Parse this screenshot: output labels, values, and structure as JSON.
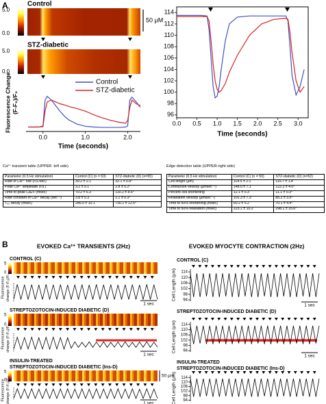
{
  "panel_a": {
    "label": "A",
    "images": [
      {
        "title": "Control",
        "scale_max": "5.0",
        "scale_min": "0.0"
      },
      {
        "title": "STZ-diabetic",
        "scale_max": "5.0",
        "scale_min": "0.0"
      }
    ],
    "scale_bar": "50 μM",
    "calcium_table": {
      "caption": "Ca²⁺ transient table (UPPER -left side)",
      "header": [
        "Parameter (0.5 Hz stimulation)",
        "Control (C)   (n = 53)",
        "STZ-diabetic (D)   (n=55)"
      ],
      "rows": [
        [
          "Rate of Ca²⁺ rise (f.u./sec)",
          "39.2 ± 2.1",
          "32.1 ± 0.8*"
        ],
        [
          "Peak Ca²⁺ amplitude (f.u.)",
          "3.2 ± 0.1",
          "2.8 ± 0.2*"
        ],
        [
          "Time to peak Ca2+ (msec)",
          "70.2 ± 6.3",
          "110.2 ± 8.6*"
        ],
        [
          "Rate constant of Ca²⁺ decay (sec⁻¹)",
          "3.8 ± 0.3",
          "2.1 ± 0.3*"
        ],
        [
          "T₅₀ decay (msec)",
          "286.5 ± 10.1",
          "730.1 ± 12.5*"
        ]
      ]
    },
    "edge_table": {
      "caption": "Edge detection table (UPPER-right side)",
      "header": [
        "Parameter (0.5 Hz stimulation)",
        "Control (C)   (n = 50)",
        "STZ-diabetic (D) (n=52)"
      ],
      "rows": [
        [
          "Cell length (µm)",
          "114.5 ± 2.1",
          "115.7 ± 1.8"
        ],
        [
          "Contraction velocity (µmsec⁻¹)",
          "148.0 ± 7.1",
          "122.2 ± 4.0*"
        ],
        [
          "Percent cell shortening",
          "12.1 ± 0.3",
          "11.1 ± 0.3*"
        ],
        [
          "Relaxation velocity (µmsec⁻¹)",
          "101.3 ± 7.3",
          "85.2 ± 3.5*"
        ],
        [
          "Time to 50% shortening (msec)",
          "60.2 ± 5.2",
          "70.1 ± 4.4*"
        ],
        [
          "Time to 50% relaxation (msec)",
          "223.1 ± 10.2",
          "298.1 ± 15.6*"
        ]
      ]
    }
  },
  "panel_b": {
    "label": "B",
    "left_title": "EVOKED Ca²⁺ TRANSIENTS (2Hz)",
    "right_title": "EVOKED MYOCYTE CONTRACTION (2Hz)",
    "groups": [
      {
        "title": [
          "CONTROL (C)"
        ],
        "scale_max": "5",
        "scale_min": "0"
      },
      {
        "title": [
          "STREPTOZOTOCIN-INDUCED DIABETIC (D)"
        ],
        "scale_max": "5",
        "scale_min": "0"
      },
      {
        "title": [
          "INSULIN-TREATED",
          "STREPTOZOTOCIN-INDUCED DIABETIC (Ins-D)"
        ],
        "scale_max": "5",
        "scale_min": "0"
      }
    ],
    "time_bar": "1 sec",
    "scale_bar": "50 µm"
  },
  "chart_data": [
    {
      "type": "line",
      "ylabel": [
        "Fluorescence Change",
        "(F-F₀)/F₀"
      ],
      "xlabel": "Time (seconds)",
      "x": [
        -0.35,
        -0.1,
        0.0,
        0.05,
        0.1,
        0.2,
        0.3,
        0.4,
        0.5,
        0.6,
        0.8,
        1.0,
        1.2,
        1.4,
        1.6,
        1.8,
        1.95,
        2.0,
        2.05,
        2.1,
        2.2,
        2.3
      ],
      "xlim": [
        -0.4,
        2.3
      ],
      "ylim": [
        0,
        1
      ],
      "xticks": [
        {
          "value": 0,
          "label": "0.0"
        },
        {
          "value": 1,
          "label": "1.0"
        },
        {
          "value": 2,
          "label": "2.0"
        }
      ],
      "series": [
        {
          "name": "Control",
          "color": "#3b4fc4",
          "values": [
            0.12,
            0.12,
            0.15,
            0.85,
            0.95,
            0.85,
            0.7,
            0.55,
            0.42,
            0.32,
            0.2,
            0.14,
            0.12,
            0.11,
            0.11,
            0.11,
            0.12,
            0.15,
            0.85,
            0.93,
            0.8,
            0.65
          ]
        },
        {
          "name": "STZ-diabetic",
          "color": "#d62020",
          "values": [
            0.12,
            0.12,
            0.13,
            0.55,
            0.8,
            0.85,
            0.8,
            0.75,
            0.72,
            0.68,
            0.62,
            0.55,
            0.45,
            0.37,
            0.3,
            0.25,
            0.22,
            0.3,
            0.65,
            0.85,
            0.75,
            0.7
          ]
        }
      ]
    },
    {
      "type": "line",
      "xlabel": "Time (seconds)",
      "x": [
        0,
        0.6,
        0.75,
        0.8,
        0.85,
        0.9,
        0.95,
        1.0,
        1.05,
        1.1,
        1.2,
        1.3,
        1.5,
        1.8,
        2.1,
        2.4,
        2.7,
        2.75,
        2.8,
        2.85,
        2.95,
        3.05,
        3.15
      ],
      "xlim": [
        0,
        3.25
      ],
      "ylim": [
        95.5,
        115
      ],
      "xticks": [
        {
          "value": 0,
          "label": "0.0"
        },
        {
          "value": 0.5,
          "label": "0.5"
        },
        {
          "value": 1,
          "label": "1.0"
        },
        {
          "value": 1.5,
          "label": "1.5"
        },
        {
          "value": 2,
          "label": "2.0"
        },
        {
          "value": 2.5,
          "label": "2.5"
        },
        {
          "value": 3,
          "label": "3.0"
        }
      ],
      "yticks": [
        96,
        98,
        100,
        102,
        104,
        106,
        108,
        110,
        112,
        114
      ],
      "series": [
        {
          "color": "#3b4fc4",
          "values": [
            113.5,
            113.5,
            113.4,
            111,
            106,
            101,
            99,
            99.3,
            101,
            104,
            109,
            112,
            113.2,
            113.4,
            113.4,
            113.4,
            113.4,
            112.5,
            108,
            103,
            99.5,
            101,
            104
          ]
        },
        {
          "color": "#d62020",
          "values": [
            113.3,
            113.3,
            113.3,
            112.5,
            109,
            105,
            102,
            100.5,
            100,
            100.3,
            101.5,
            103.5,
            106.5,
            110,
            112,
            112.8,
            113,
            112.8,
            110.5,
            107,
            102,
            100,
            101
          ]
        }
      ]
    },
    {
      "type": "line",
      "ylabel": [
        "Fluorescence",
        "change (F-F₀)/F₀"
      ],
      "ylim": [
        0,
        1
      ],
      "color": "#000000",
      "values": [
        0.1,
        0.95,
        0.1,
        0.93,
        0.1,
        0.94,
        0.1,
        0.92,
        0.1,
        0.95,
        0.1,
        0.93,
        0.1,
        0.94,
        0.1,
        0.92,
        0.1,
        0.93,
        0.1,
        0.94,
        0.1,
        0.92,
        0.1,
        0.95,
        0.1,
        0.93,
        0.1,
        0.94,
        0.1,
        0.92,
        0.1,
        0.93,
        0.1,
        0.94,
        0.1,
        0.92,
        0.1,
        0.95,
        0.1,
        0.93,
        0.1
      ]
    },
    {
      "type": "line",
      "ylabel": [
        "Fluorescence",
        "change (F-F₀)/F₀"
      ],
      "ylim": [
        0,
        1
      ],
      "color": "#000000",
      "values": [
        0.15,
        0.8,
        0.15,
        0.78,
        0.16,
        0.8,
        0.15,
        0.77,
        0.16,
        0.79,
        0.15,
        0.8,
        0.16,
        0.78,
        0.15,
        0.77,
        0.2,
        0.55,
        0.25,
        0.52,
        0.26,
        0.55,
        0.25,
        0.53,
        0.26,
        0.55,
        0.25,
        0.52,
        0.26,
        0.54,
        0.25,
        0.55,
        0.26,
        0.52,
        0.25,
        0.54,
        0.26,
        0.55,
        0.25,
        0.53,
        0.26
      ]
    },
    {
      "type": "line",
      "ylabel": [
        "Fluorescence",
        "change (F-F₀)/F₀"
      ],
      "ylim": [
        0,
        1
      ],
      "color": "#000000",
      "values": [
        0.12,
        0.9,
        0.12,
        0.88,
        0.12,
        0.9,
        0.12,
        0.87,
        0.12,
        0.9,
        0.12,
        0.88,
        0.12,
        0.89,
        0.12,
        0.9,
        0.12,
        0.88,
        0.12,
        0.9,
        0.12,
        0.87,
        0.12,
        0.9,
        0.12,
        0.88,
        0.12,
        0.89,
        0.12,
        0.9,
        0.12,
        0.88,
        0.12,
        0.9,
        0.12,
        0.87,
        0.12,
        0.9,
        0.12,
        0.88,
        0.12
      ]
    },
    {
      "type": "line",
      "ylabel": "Cell Length (µm)",
      "ylim": [
        93,
        116
      ],
      "yticks": [
        94,
        98,
        102,
        106,
        110,
        114
      ],
      "color": "#000000",
      "values": [
        113,
        96,
        113,
        96,
        113,
        96.5,
        113,
        96,
        113,
        96,
        113,
        96.5,
        113,
        96,
        113,
        96,
        113,
        96.5,
        113,
        96,
        113,
        96,
        113,
        96.5,
        113,
        96,
        113,
        96,
        113,
        96.5,
        113,
        96,
        113,
        96,
        113,
        96.5,
        113,
        96,
        113,
        96,
        113
      ]
    },
    {
      "type": "line",
      "ylabel": "Cell Length (µm)",
      "ylim": [
        93,
        116
      ],
      "yticks": [
        94,
        98,
        102,
        106,
        110,
        114
      ],
      "color": "#000000",
      "values": [
        113,
        99,
        113,
        99.5,
        113,
        99,
        113,
        99,
        113,
        99.5,
        113,
        99,
        113,
        99,
        113,
        99.5,
        113,
        99,
        113,
        99,
        113,
        99.5,
        113,
        99,
        113,
        99,
        113,
        99.5,
        113,
        99,
        113,
        99,
        113,
        99.5,
        113,
        99,
        113,
        99,
        113,
        99.5,
        113
      ]
    },
    {
      "type": "line",
      "ylabel": "Cell Length (µm)",
      "ylim": [
        93,
        116
      ],
      "yticks": [
        94,
        98,
        102,
        106,
        110,
        114
      ],
      "color": "#000000",
      "values": [
        113,
        97,
        113,
        97,
        113,
        97.5,
        113,
        97,
        113,
        97,
        113,
        97.5,
        113,
        97,
        113,
        97,
        113,
        97.5,
        113,
        97,
        113,
        97,
        113,
        97.5,
        113,
        97,
        113,
        97,
        113,
        97.5,
        113,
        97,
        113,
        97,
        113,
        97.5,
        113,
        97,
        113,
        97,
        113
      ]
    }
  ]
}
